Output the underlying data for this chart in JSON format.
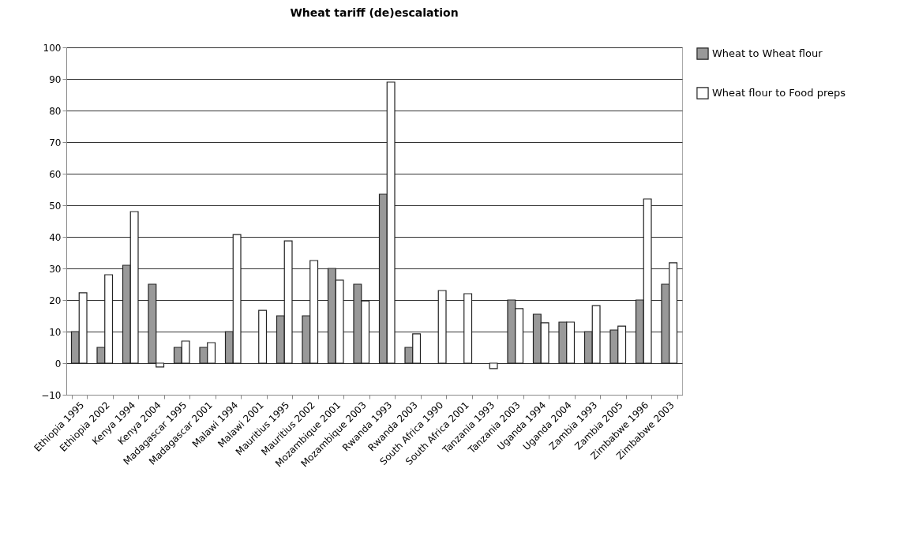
{
  "chart_data": {
    "type": "bar",
    "title": "Wheat tariff (de)escalation",
    "categories": [
      "Ethiopia 1995",
      "Ethiopia 2002",
      "Kenya 1994",
      "Kenya 2004",
      "Madagascar 1995",
      "Madagascar 2001",
      "Malawi 1994",
      "Malawi 2001",
      "Mauritius 1995",
      "Mauritius 2002",
      "Mozambique 2001",
      "Mozambique 2003",
      "Rwanda 1993",
      "Rwanda 2003",
      "South Africa 1990",
      "South Africa 2001",
      "Tanzania 1993",
      "Tanzania 2003",
      "Uganda 1994",
      "Uganda 2004",
      "Zambia 1993",
      "Zambia 2005",
      "Zimbabwe 1996",
      "Zimbabwe 2003"
    ],
    "series": [
      {
        "name": "Wheat to Wheat flour",
        "color": "#999999",
        "values": [
          10,
          5,
          31,
          25,
          5,
          5,
          10,
          null,
          15,
          15,
          30,
          25,
          53.5,
          5,
          null,
          null,
          null,
          20,
          15.5,
          13,
          10,
          10.5,
          20,
          25
        ]
      },
      {
        "name": "Wheat flour to Food preps",
        "color": "#ffffff",
        "values": [
          22.3,
          28,
          48,
          -1.2,
          7,
          6.5,
          40.7,
          16.7,
          38.7,
          32.5,
          26.3,
          19.7,
          89,
          9.3,
          23,
          22,
          -1.7,
          17.3,
          12.8,
          13,
          18.2,
          11.7,
          52,
          31.8
        ]
      }
    ],
    "ylim": [
      -10,
      100
    ],
    "yticks": [
      -10,
      0,
      10,
      20,
      30,
      40,
      50,
      60,
      70,
      80,
      90,
      100
    ],
    "grid": "y",
    "legend": "right"
  }
}
